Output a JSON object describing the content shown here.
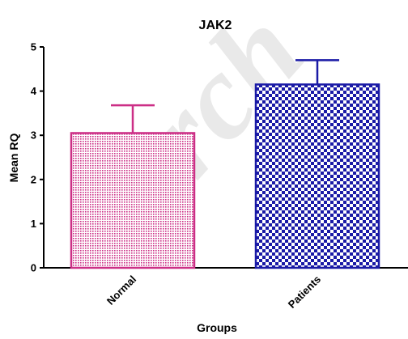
{
  "chart_data": {
    "type": "bar",
    "title": "JAK2",
    "xlabel": "Groups",
    "ylabel": "Mean RQ",
    "ylim": [
      0,
      5
    ],
    "yticks": [
      "0",
      "1",
      "2",
      "3",
      "4",
      "5"
    ],
    "categories": [
      "Normal",
      "Patients"
    ],
    "values": [
      3.05,
      4.15
    ],
    "error_upper": [
      3.68,
      4.7
    ],
    "colors": [
      "#cc2f86",
      "#1a1aa6"
    ],
    "patterns": [
      "fine-dots",
      "checkerboard"
    ],
    "grid": false,
    "legend": false
  },
  "watermark": {
    "text": "Arch"
  }
}
